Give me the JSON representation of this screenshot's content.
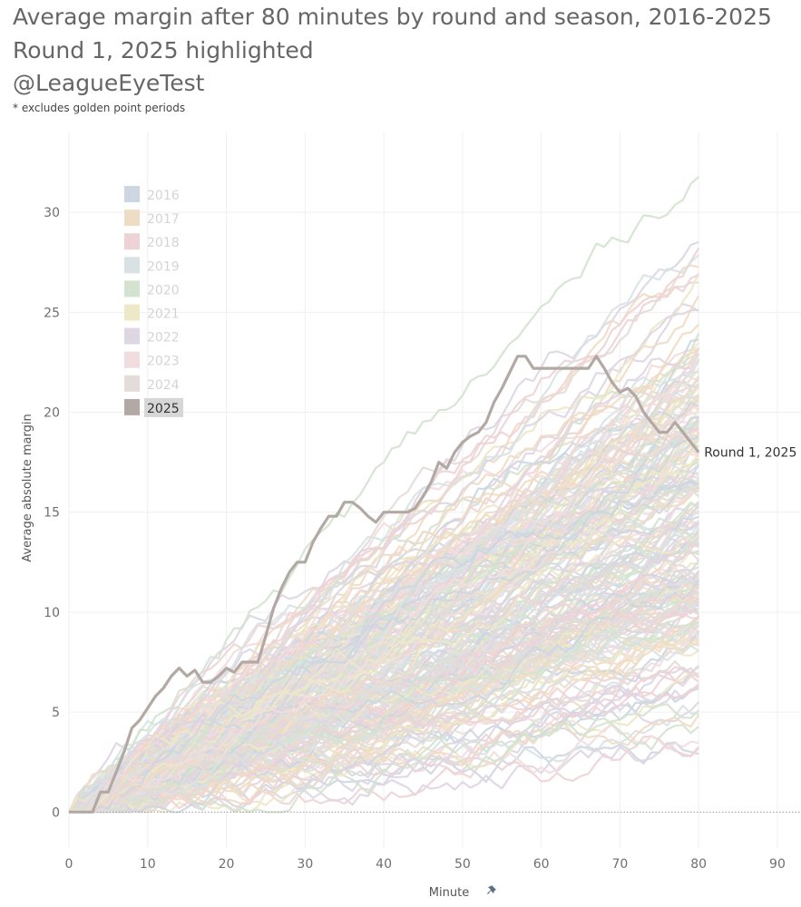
{
  "header": {
    "title_line1": "Average margin after 80 minutes by round and season, 2016-2025",
    "title_line2": "Round 1, 2025 highlighted",
    "handle": "@LeagueEyeTest",
    "footnote": "* excludes golden point periods"
  },
  "chart_data": {
    "type": "line",
    "title": "Average margin after 80 minutes by round and season, 2016-2025",
    "subtitle": "Round 1, 2025 highlighted",
    "xlabel": "Minute",
    "ylabel": "Average absolute margin",
    "xlim": [
      0,
      93
    ],
    "ylim": [
      -1.8,
      34
    ],
    "x_ticks": [
      0,
      10,
      20,
      30,
      40,
      50,
      60,
      70,
      80,
      90
    ],
    "y_ticks": [
      0,
      5,
      10,
      15,
      20,
      25,
      30
    ],
    "grid": true,
    "legend_position": "top-left",
    "legend": [
      {
        "label": "2016",
        "color": "#cdd6e1"
      },
      {
        "label": "2017",
        "color": "#efdcc4"
      },
      {
        "label": "2018",
        "color": "#eed3d6"
      },
      {
        "label": "2019",
        "color": "#d8e2e4"
      },
      {
        "label": "2020",
        "color": "#d3e3cf"
      },
      {
        "label": "2021",
        "color": "#ede8c8"
      },
      {
        "label": "2022",
        "color": "#ded6e3"
      },
      {
        "label": "2023",
        "color": "#f1dde0"
      },
      {
        "label": "2024",
        "color": "#e3dcd8"
      },
      {
        "label": "2025",
        "color": "#b3a9a4"
      }
    ],
    "highlighted_series": {
      "name": "Round 1, 2025",
      "season": "2025",
      "color": "#b3a9a4",
      "points": [
        [
          0,
          0
        ],
        [
          1,
          0
        ],
        [
          2,
          0
        ],
        [
          3,
          0
        ],
        [
          4,
          1
        ],
        [
          5,
          1
        ],
        [
          6,
          2
        ],
        [
          7,
          3
        ],
        [
          8,
          4.2
        ],
        [
          9,
          4.6
        ],
        [
          10,
          5.2
        ],
        [
          11,
          5.8
        ],
        [
          12,
          6.2
        ],
        [
          13,
          6.8
        ],
        [
          14,
          7.2
        ],
        [
          15,
          6.8
        ],
        [
          16,
          7.1
        ],
        [
          17,
          6.5
        ],
        [
          18,
          6.5
        ],
        [
          19,
          6.8
        ],
        [
          20,
          7.2
        ],
        [
          21,
          7
        ],
        [
          22,
          7.5
        ],
        [
          23,
          7.5
        ],
        [
          24,
          7.5
        ],
        [
          25,
          8.8
        ],
        [
          26,
          10.2
        ],
        [
          27,
          11.2
        ],
        [
          28,
          12
        ],
        [
          29,
          12.5
        ],
        [
          30,
          12.5
        ],
        [
          31,
          13.5
        ],
        [
          32,
          14.2
        ],
        [
          33,
          14.8
        ],
        [
          34,
          14.8
        ],
        [
          35,
          15.5
        ],
        [
          36,
          15.5
        ],
        [
          37,
          15.2
        ],
        [
          38,
          14.8
        ],
        [
          39,
          14.5
        ],
        [
          40,
          15
        ],
        [
          41,
          15
        ],
        [
          42,
          15
        ],
        [
          43,
          15
        ],
        [
          44,
          15.2
        ],
        [
          45,
          15.8
        ],
        [
          46,
          16.5
        ],
        [
          47,
          17.5
        ],
        [
          48,
          17.2
        ],
        [
          49,
          18
        ],
        [
          50,
          18.5
        ],
        [
          51,
          18.8
        ],
        [
          52,
          19
        ],
        [
          53,
          19.5
        ],
        [
          54,
          20.5
        ],
        [
          55,
          21.2
        ],
        [
          56,
          22
        ],
        [
          57,
          22.8
        ],
        [
          58,
          22.8
        ],
        [
          59,
          22.2
        ],
        [
          60,
          22.2
        ],
        [
          61,
          22.2
        ],
        [
          62,
          22.2
        ],
        [
          63,
          22.2
        ],
        [
          64,
          22.2
        ],
        [
          65,
          22.2
        ],
        [
          66,
          22.2
        ],
        [
          67,
          22.8
        ],
        [
          68,
          22.2
        ],
        [
          69,
          21.5
        ],
        [
          70,
          21
        ],
        [
          71,
          21.2
        ],
        [
          72,
          20.8
        ],
        [
          73,
          20
        ],
        [
          74,
          19.5
        ],
        [
          75,
          19
        ],
        [
          76,
          19
        ],
        [
          77,
          19.5
        ],
        [
          78,
          19
        ],
        [
          79,
          18.5
        ],
        [
          80,
          18
        ]
      ]
    },
    "background_series": {
      "description": "All other rounds 2016-2025, 0 to 80 minutes",
      "count": 230,
      "final_value_range": [
        3.5,
        32.3
      ]
    }
  }
}
